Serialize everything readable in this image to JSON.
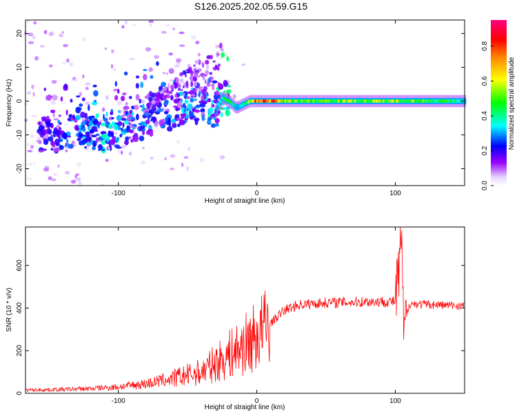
{
  "figure_title": "S126.2025.202.05.59.G15",
  "chart_data": [
    {
      "type": "heatmap",
      "title": "S126.2025.202.05.59.G15",
      "xlabel": "Height of straight line (km)",
      "ylabel": "Frequency (Hz)",
      "xlim": [
        -167,
        150
      ],
      "ylim": [
        -25,
        24
      ],
      "xticks": [
        -100,
        0,
        100
      ],
      "yticks": [
        -20,
        -10,
        0,
        10,
        20
      ],
      "colorbar": {
        "label": "Normalized spectral amplitude",
        "range": [
          0,
          0.95
        ],
        "ticks": [
          0.0,
          0.2,
          0.4,
          0.6,
          0.8
        ],
        "tick_labels": [
          "0.0",
          "0.2",
          "0.4",
          "0.6",
          "0.8"
        ],
        "colormap": "purple-blue-cyan-green-yellow-red-magenta"
      },
      "ridge": {
        "x": [
          -155,
          -145,
          -130,
          -120,
          -110,
          -100,
          -90,
          -80,
          -70,
          -60,
          -50,
          -40,
          -30,
          -25,
          -20,
          -15,
          -10,
          -5,
          0,
          10,
          20,
          40,
          60,
          80,
          100,
          120,
          150
        ],
        "freq": [
          -10,
          -10,
          -9,
          -9,
          -11,
          -9,
          -7,
          -6,
          -4,
          -3,
          -2,
          -1,
          -3,
          1,
          0,
          -2,
          -1,
          0,
          0,
          0,
          0,
          0,
          0,
          0,
          0,
          0,
          0
        ],
        "amplitude": [
          0.2,
          0.25,
          0.3,
          0.3,
          0.35,
          0.3,
          0.3,
          0.3,
          0.25,
          0.3,
          0.3,
          0.3,
          0.35,
          0.4,
          0.5,
          0.4,
          0.4,
          0.6,
          0.9,
          0.85,
          0.6,
          0.55,
          0.6,
          0.55,
          0.6,
          0.55,
          0.4
        ]
      }
    },
    {
      "type": "line",
      "xlabel": "Height of straight line (km)",
      "ylabel": "SNR (10 * v/v)",
      "xlim": [
        -167,
        150
      ],
      "ylim": [
        0,
        780
      ],
      "xticks": [
        -100,
        0,
        100
      ],
      "yticks": [
        0,
        200,
        400,
        600
      ],
      "color": "#ff0000",
      "envelope": {
        "x": [
          -167,
          -140,
          -120,
          -100,
          -80,
          -60,
          -40,
          -30,
          -20,
          -10,
          0,
          10,
          20,
          30,
          50,
          80,
          100,
          102,
          104,
          106,
          110,
          130,
          150
        ],
        "y": [
          15,
          18,
          22,
          30,
          45,
          70,
          100,
          140,
          180,
          220,
          270,
          330,
          390,
          415,
          425,
          430,
          430,
          520,
          760,
          300,
          420,
          415,
          410
        ]
      }
    }
  ]
}
